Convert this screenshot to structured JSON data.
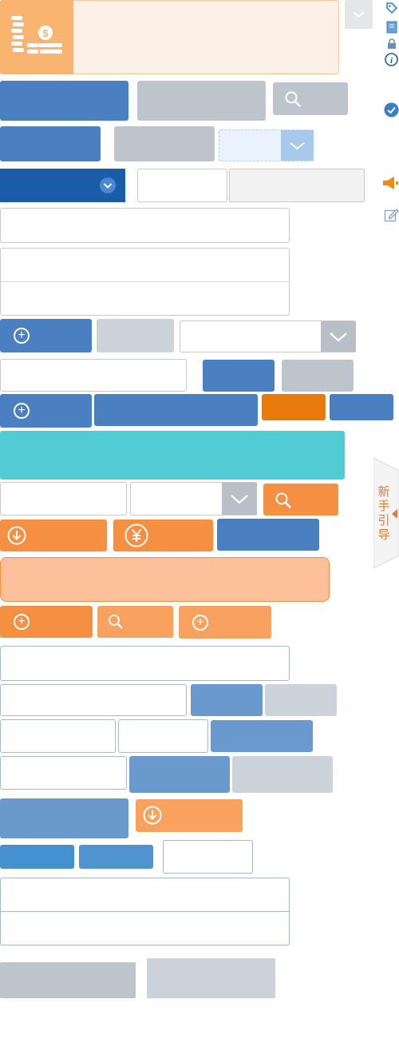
{
  "guide_tab": {
    "lines": [
      "新",
      "手",
      "引",
      "导"
    ]
  },
  "colors": {
    "primary_blue": "#4a7fc1",
    "dark_blue": "#1a5ca8",
    "orange": "#f58f42",
    "deep_orange": "#e87a0c",
    "teal": "#52ccd4",
    "gray": "#bec4cc"
  },
  "icons": {
    "toolbar": [
      "tag-icon",
      "book-icon",
      "lock-icon",
      "info-icon",
      "check-circle-icon",
      "megaphone-icon",
      "edit-icon"
    ],
    "buttons": [
      "plus-icon",
      "search-icon",
      "download-icon",
      "yuan-icon",
      "chevron-down-icon",
      "coins-icon"
    ]
  }
}
